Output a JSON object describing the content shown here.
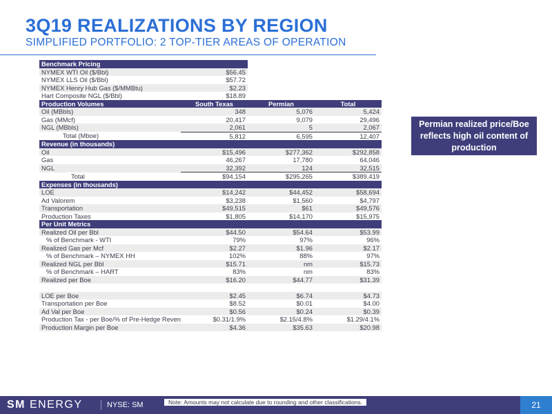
{
  "title": "3Q19 REALIZATIONS BY REGION",
  "subtitle": "SIMPLIFIED PORTFOLIO: 2 TOP-TIER AREAS OF OPERATION",
  "callout": "Permian realized price/Boe reflects high oil content of production",
  "benchmark": {
    "header": "Benchmark Pricing",
    "rows": [
      {
        "label": "NYMEX WTI Oil ($/Bbl)",
        "value": "$56.45"
      },
      {
        "label": "NYMEX LLS Oil ($/Bbl)",
        "value": "$57.72"
      },
      {
        "label": "NYMEX Henry Hub Gas ($/MMBtu)",
        "value": "$2.23"
      },
      {
        "label": "Hart Composite NGL ($/Bbl)",
        "value": "$18.89"
      }
    ]
  },
  "production": {
    "header": "Production Volumes",
    "columns": [
      "South Texas",
      "Permian",
      "Total"
    ],
    "rows": [
      {
        "label": "Oil (MBbls)",
        "values": [
          "348",
          "5,076",
          "5,424"
        ]
      },
      {
        "label": "Gas (MMcf)",
        "values": [
          "20,417",
          "9,079",
          "29,496"
        ]
      },
      {
        "label": "NGL (MBbls)",
        "values": [
          "2,061",
          "5",
          "2,067"
        ]
      },
      {
        "label": "Total (Mboe)",
        "values": [
          "5,812",
          "6,595",
          "12,407"
        ]
      }
    ]
  },
  "revenue": {
    "header": "Revenue (in thousands)",
    "rows": [
      {
        "label": "Oil",
        "values": [
          "$15,496",
          "$277,362",
          "$292,858"
        ]
      },
      {
        "label": "Gas",
        "values": [
          "46,267",
          "17,780",
          "64,046"
        ]
      },
      {
        "label": "NGL",
        "values": [
          "32,392",
          "124",
          "32,515"
        ]
      },
      {
        "label": "Total",
        "values": [
          "$94,154",
          "$295,265",
          "$389,419"
        ]
      }
    ]
  },
  "expenses": {
    "header": "Expenses (in thousands)",
    "rows": [
      {
        "label": "LOE",
        "values": [
          "$14,242",
          "$44,452",
          "$58,694"
        ]
      },
      {
        "label": "Ad Valorem",
        "values": [
          "$3,238",
          "$1,560",
          "$4,797"
        ]
      },
      {
        "label": "Transportation",
        "values": [
          "$49,515",
          "$61",
          "$49,576"
        ]
      },
      {
        "label": "Production Taxes",
        "values": [
          "$1,805",
          "$14,170",
          "$15,975"
        ]
      }
    ]
  },
  "per_unit": {
    "header": "Per Unit Metrics",
    "rows": [
      {
        "label": "Realized Oil per Bbl",
        "values": [
          "$44.50",
          "$54.64",
          "$53.99"
        ]
      },
      {
        "label": "% of Benchmark - WTI",
        "values": [
          "79%",
          "97%",
          "96%"
        ]
      },
      {
        "label": "Realized Gas per Mcf",
        "values": [
          "$2.27",
          "$1.96",
          "$2.17"
        ]
      },
      {
        "label": "% of Benchmark – NYMEX HH",
        "values": [
          "102%",
          "88%",
          "97%"
        ]
      },
      {
        "label": "Realized NGL per Bbl",
        "values": [
          "$15.71",
          "nm",
          "$15.73"
        ]
      },
      {
        "label": "% of Benchmark – HART",
        "values": [
          "83%",
          "nm",
          "83%"
        ]
      },
      {
        "label": "Realized per Boe",
        "values": [
          "$16.20",
          "$44.77",
          "$31.39"
        ]
      },
      {
        "label": "LOE per Boe",
        "values": [
          "$2.45",
          "$6.74",
          "$4.73"
        ]
      },
      {
        "label": "Transportation per Boe",
        "values": [
          "$8.52",
          "$0.01",
          "$4.00"
        ]
      },
      {
        "label": "Ad Val per Boe",
        "values": [
          "$0.56",
          "$0.24",
          "$0.39"
        ]
      },
      {
        "label": "Production Tax - per Boe/% of Pre-Hedge Revenue",
        "values": [
          "$0.31/1.9%",
          "$2.15/4.8%",
          "$1.29/4.1%"
        ]
      },
      {
        "label": "Production Margin per Boe",
        "values": [
          "$4.36",
          "$35.63",
          "$20.98"
        ]
      }
    ]
  },
  "footer": {
    "logo_bold": "SM",
    "logo_thin": "ENERGY",
    "ticker": "NYSE: SM",
    "note": "Note: Amounts may not calculate due to rounding and other classifications.",
    "page": "21"
  }
}
